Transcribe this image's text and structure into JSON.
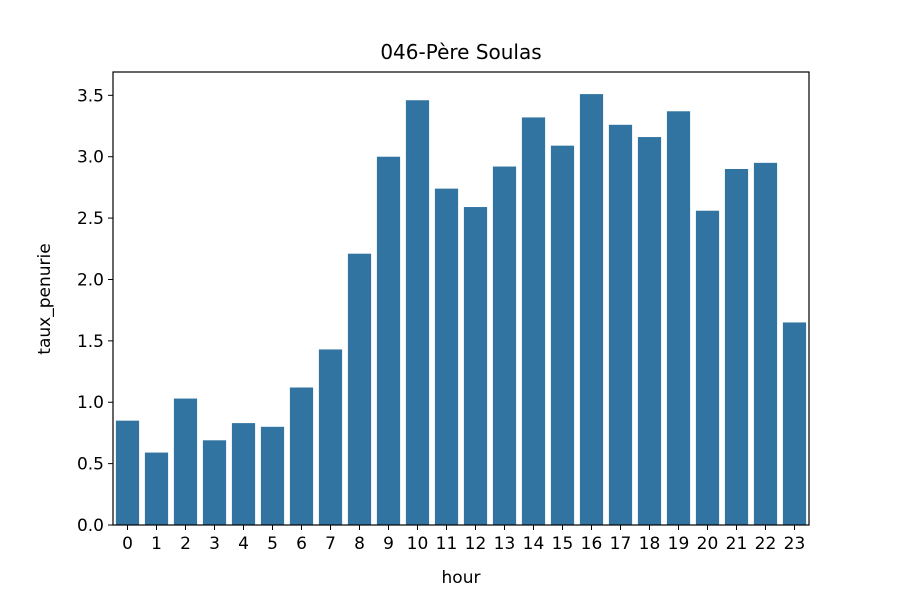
{
  "chart_data": {
    "type": "bar",
    "title": "046-Père Soulas",
    "xlabel": "hour",
    "ylabel": "taux_penurie",
    "categories": [
      "0",
      "1",
      "2",
      "3",
      "4",
      "5",
      "6",
      "7",
      "8",
      "9",
      "10",
      "11",
      "12",
      "13",
      "14",
      "15",
      "16",
      "17",
      "18",
      "19",
      "20",
      "21",
      "22",
      "23"
    ],
    "values": [
      0.85,
      0.59,
      1.03,
      0.69,
      0.83,
      0.8,
      1.12,
      1.43,
      2.21,
      3.0,
      3.46,
      2.74,
      2.59,
      2.92,
      3.32,
      3.09,
      3.51,
      3.26,
      3.16,
      3.37,
      2.56,
      2.9,
      2.95,
      1.65
    ],
    "ylim": [
      0,
      3.69
    ],
    "yticks": [
      0.0,
      0.5,
      1.0,
      1.5,
      2.0,
      2.5,
      3.0,
      3.5
    ],
    "ytick_labels": [
      "0.0",
      "0.5",
      "1.0",
      "1.5",
      "2.0",
      "2.5",
      "3.0",
      "3.5"
    ],
    "bar_color": "#3274a1",
    "grid": false,
    "legend": "none"
  }
}
